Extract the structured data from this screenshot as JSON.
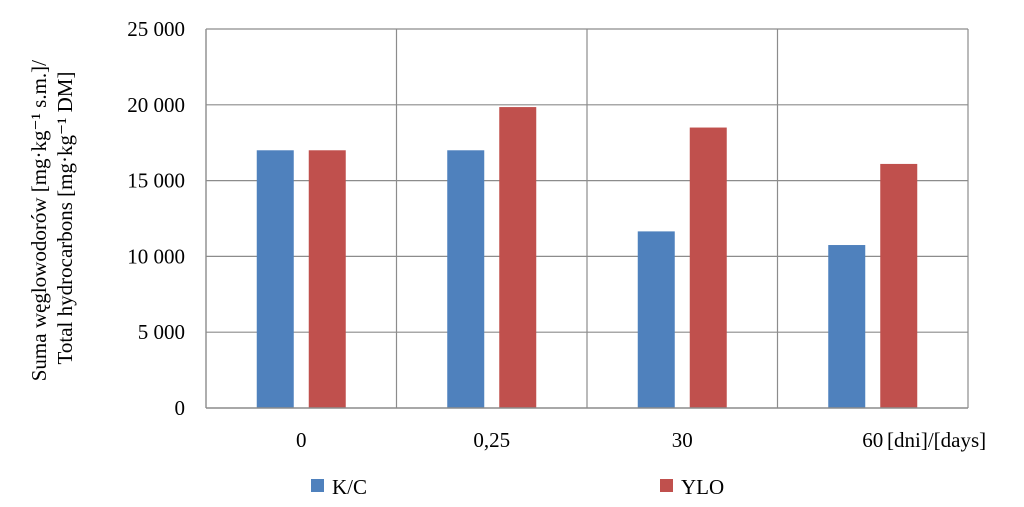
{
  "chart_data": {
    "type": "bar",
    "categories": [
      "0",
      "0,25",
      "30",
      "60"
    ],
    "series": [
      {
        "name": "K/C",
        "values": [
          17000,
          17000,
          11650,
          10750
        ],
        "color": "#4F81BD"
      },
      {
        "name": "YLO",
        "values": [
          17000,
          19850,
          18500,
          16100
        ],
        "color": "#C0504D"
      }
    ],
    "ylim": [
      0,
      25000
    ],
    "yticks": [
      0,
      5000,
      10000,
      15000,
      20000,
      25000
    ],
    "ytick_labels": [
      "0",
      "5 000",
      "10 000",
      "15 000",
      "20 000",
      "25 000"
    ],
    "ylabel_line1": "Suma węglowodorów [mg·kg⁻¹ s.m.]/",
    "ylabel_line2": "Total hydrocarbons [mg·kg⁻¹ DM]",
    "xlabel": "[dni]/[days]",
    "grid": true,
    "legend_position": "bottom"
  }
}
